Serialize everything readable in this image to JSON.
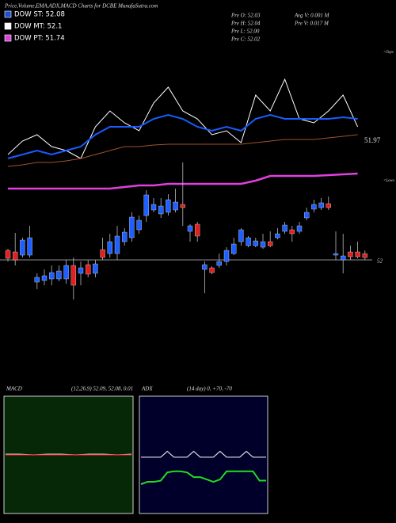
{
  "chart_data": [
    {
      "type": "candlestick",
      "title": "Price,Volume,EMA,ADX,MACD Charts for DCBE MunafaSutra.com",
      "legend": [
        {
          "name": "DOW ST: 52.08",
          "color": "#1a4fd8"
        },
        {
          "name": "DOW MT: 52.1",
          "color": "#ffffff"
        },
        {
          "name": "DOW PT: 51.74",
          "color": "#e040e0"
        }
      ],
      "info": [
        "Pre   O: 52.03",
        "Pre   H: 52.04",
        "Pre   L: 52.00",
        "Pre   C: 52.02",
        "Avg V: 0.001 M",
        "Pre   V: 0.017 M"
      ],
      "annotations": [
        "<Tops",
        "<Lows",
        "51.97"
      ],
      "ylim": [
        51.954,
        52.134
      ],
      "yticks": [
        52
      ],
      "grid": true,
      "up_color": "#1f5fff",
      "down_color": "#e02020",
      "candles": [
        [
          52.006,
          52.007,
          51.999,
          52.001
        ],
        [
          52.005,
          52.017,
          51.9965,
          52.0
        ],
        [
          52.003,
          52.014,
          52.0015,
          52.0125
        ],
        [
          52.003,
          52.0215,
          52.0015,
          52.014
        ],
        [
          51.986,
          51.9915,
          51.9815,
          51.989
        ],
        [
          51.987,
          51.994,
          51.984,
          51.99
        ],
        [
          51.988,
          51.9965,
          51.984,
          51.992
        ],
        [
          51.988,
          51.9965,
          51.9865,
          51.993
        ],
        [
          51.988,
          52.0,
          51.985,
          51.9965
        ],
        [
          51.9965,
          52.0015,
          51.975,
          51.984
        ],
        [
          51.9915,
          51.999,
          51.984,
          51.995
        ],
        [
          51.997,
          52.0,
          51.989,
          51.991
        ],
        [
          51.9915,
          52.0,
          51.989,
          51.9975
        ],
        [
          52.0065,
          52.014,
          52.0,
          52.0015
        ],
        [
          52.004,
          52.0165,
          52.0015,
          52.0115
        ],
        [
          52.004,
          52.0215,
          52.0,
          52.015
        ],
        [
          52.0115,
          52.02,
          52.009,
          52.0175
        ],
        [
          52.014,
          52.03,
          52.0115,
          52.027
        ],
        [
          52.019,
          52.028,
          52.0165,
          52.025
        ],
        [
          52.028,
          52.044,
          52.024,
          52.041
        ],
        [
          52.0315,
          52.039,
          52.03,
          52.035
        ],
        [
          52.029,
          52.039,
          52.0265,
          52.034
        ],
        [
          52.03,
          52.0415,
          52.028,
          52.038
        ],
        [
          52.0315,
          52.045,
          52.03,
          52.0365
        ],
        [
          52.035,
          52.0615,
          52.0215,
          52.033
        ],
        [
          52.018,
          52.0225,
          52.0115,
          52.0215
        ],
        [
          52.0225,
          52.024,
          52.0115,
          52.015
        ],
        [
          51.994,
          51.999,
          51.979,
          51.997
        ],
        [
          51.995,
          51.996,
          51.991,
          51.992
        ],
        [
          51.9965,
          52.004,
          51.995,
          51.999
        ],
        [
          51.999,
          52.008,
          51.9965,
          52.006
        ],
        [
          52.004,
          52.014,
          52.003,
          52.01
        ],
        [
          52.0115,
          52.02,
          52.009,
          52.019
        ],
        [
          52.009,
          52.015,
          52.008,
          52.014
        ],
        [
          52.009,
          52.014,
          52.008,
          52.012
        ],
        [
          52.008,
          52.0165,
          52.007,
          52.0115
        ],
        [
          52.0115,
          52.018,
          52.008,
          52.009
        ],
        [
          52.014,
          52.02,
          52.013,
          52.0165
        ],
        [
          52.018,
          52.024,
          52.0165,
          52.022
        ],
        [
          52.019,
          52.0215,
          52.0115,
          52.0165
        ],
        [
          52.018,
          52.024,
          52.0165,
          52.0215
        ],
        [
          52.0265,
          52.033,
          52.025,
          52.03
        ],
        [
          52.032,
          52.038,
          52.03,
          52.035
        ],
        [
          52.033,
          52.039,
          52.0315,
          52.036
        ],
        [
          52.0355,
          52.04,
          52.0315,
          52.033
        ],
        [
          52.003,
          52.018,
          52.0,
          52.004
        ],
        [
          52.0,
          52.0165,
          51.9915,
          52.0025
        ],
        [
          52.005,
          52.009,
          52.0,
          52.002
        ],
        [
          52.005,
          52.0115,
          52.001,
          52.002
        ],
        [
          52.004,
          52.006,
          52.0,
          52.0015
        ]
      ],
      "series": [
        {
          "color": "#ffffff",
          "values": [
            52.0665,
            52.075,
            52.079,
            52.0715,
            52.069,
            52.064,
            52.084,
            52.094,
            52.0865,
            52.0815,
            52.099,
            52.109,
            52.094,
            52.089,
            52.079,
            52.0815,
            52.074,
            52.104,
            52.094,
            52.114,
            52.089,
            52.0865,
            52.094,
            52.104,
            52.084
          ]
        },
        {
          "color": "#1a5cff",
          "values": [
            52.064,
            52.0665,
            52.069,
            52.0665,
            52.069,
            52.0715,
            52.079,
            52.084,
            52.084,
            52.084,
            52.089,
            52.0915,
            52.089,
            52.084,
            52.0815,
            52.084,
            52.0815,
            52.089,
            52.0915,
            52.089,
            52.089,
            52.089,
            52.089,
            52.09,
            52.089
          ]
        },
        {
          "color": "#a0522d",
          "values": [
            52.059,
            52.06,
            52.0615,
            52.0615,
            52.0625,
            52.064,
            52.0665,
            52.069,
            52.0715,
            52.0715,
            52.0725,
            52.073,
            52.073,
            52.073,
            52.073,
            52.073,
            52.073,
            52.074,
            52.075,
            52.076,
            52.076,
            52.076,
            52.077,
            52.078,
            52.079
          ]
        },
        {
          "color": "#e040e0",
          "values": [
            52.045,
            52.045,
            52.045,
            52.045,
            52.045,
            52.045,
            52.045,
            52.045,
            52.046,
            52.047,
            52.047,
            52.048,
            52.048,
            52.048,
            52.048,
            52.048,
            52.048,
            52.05,
            52.053,
            52.053,
            52.053,
            52.053,
            52.0535,
            52.054,
            52.0545
          ]
        }
      ]
    },
    {
      "type": "line",
      "title": "MACD",
      "subtitle": "(12,26,9) 52.09, 52.08, 0.01",
      "background": "#062806",
      "ylim": [
        -1,
        1
      ],
      "series": [
        {
          "color": "#ffffff",
          "values": [
            0.01,
            0.01,
            0.0,
            0.01,
            0.01,
            0.0,
            0.01,
            0.01,
            0.0,
            0.01
          ]
        },
        {
          "color": "#e02020",
          "values": [
            0.0,
            0.0,
            0.0,
            0.0,
            0.0,
            0.0,
            0.0,
            0.0,
            0.0,
            0.0
          ]
        }
      ]
    },
    {
      "type": "line",
      "title": "ADX",
      "subtitle": "(14 day) 0, +70, -70",
      "background": "#00002a",
      "ylim": [
        0,
        100
      ],
      "series": [
        {
          "color": "#dddddd",
          "values": [
            48,
            48,
            48,
            48,
            53,
            48,
            48,
            48,
            53,
            48,
            48,
            48,
            53,
            48,
            48,
            48,
            53,
            48,
            48,
            48
          ]
        },
        {
          "color": "#22dd22",
          "values": [
            25,
            27,
            27,
            28,
            35,
            36,
            36,
            35,
            31,
            31,
            29,
            27,
            29,
            36,
            36,
            36,
            36,
            36,
            28,
            28
          ]
        }
      ]
    }
  ]
}
